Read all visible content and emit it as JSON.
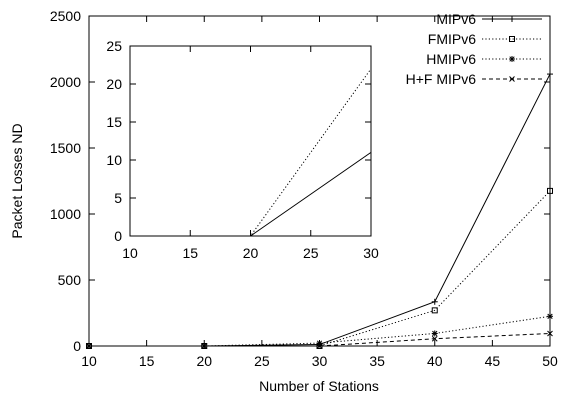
{
  "chart_data": [
    {
      "type": "line",
      "title": "",
      "xlabel": "Number of Stations",
      "ylabel": "Packet Losses ND",
      "xlim": [
        10,
        50
      ],
      "ylim": [
        0,
        2500
      ],
      "xticks": [
        10,
        15,
        20,
        25,
        30,
        35,
        40,
        45,
        50
      ],
      "yticks": [
        0,
        500,
        1000,
        1500,
        2000,
        2500
      ],
      "grid": false,
      "legend_position": "top-right",
      "x": [
        10,
        20,
        30,
        40,
        50
      ],
      "series": [
        {
          "name": "MIPv6",
          "marker": "plus",
          "dash": "solid",
          "values": [
            0,
            0,
            11,
            335,
            2060
          ]
        },
        {
          "name": "FMIPv6",
          "marker": "square",
          "dash": "dotted",
          "values": [
            0,
            0,
            0,
            270,
            1175
          ]
        },
        {
          "name": "HMIPv6",
          "marker": "asterisk",
          "dash": "dotted",
          "values": [
            0,
            0,
            22,
            95,
            225
          ]
        },
        {
          "name": "H+F MIPv6",
          "marker": "cross",
          "dash": "dashed",
          "values": [
            0,
            0,
            0,
            55,
            95
          ]
        }
      ]
    },
    {
      "type": "line",
      "title": "",
      "xlabel": "",
      "ylabel": "",
      "role": "inset",
      "xlim": [
        10,
        30
      ],
      "ylim": [
        0,
        25
      ],
      "xticks": [
        10,
        15,
        20,
        25,
        30
      ],
      "yticks": [
        0,
        5,
        10,
        15,
        20,
        25
      ],
      "grid": false,
      "x": [
        10,
        20,
        30
      ],
      "series": [
        {
          "name": "MIPv6",
          "dash": "solid",
          "values": [
            0,
            0,
            11
          ]
        },
        {
          "name": "FMIPv6",
          "dash": "dotted",
          "values": [
            0,
            0,
            0
          ]
        },
        {
          "name": "HMIPv6",
          "dash": "dotted",
          "values": [
            0,
            0,
            22
          ]
        },
        {
          "name": "H+F MIPv6",
          "dash": "dashed",
          "values": [
            0,
            0,
            0
          ]
        }
      ]
    }
  ]
}
